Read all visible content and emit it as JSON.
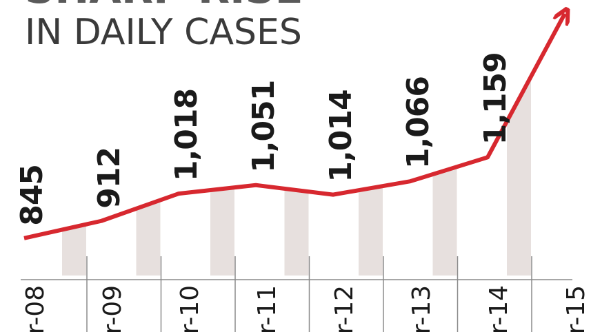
{
  "chart_data": {
    "type": "line",
    "title": "SHARP RISE",
    "subtitle": "IN DAILY CASES",
    "categories": [
      "r-08",
      "r-09",
      "r-10",
      "r-11",
      "r-12",
      "r-13",
      "r-14",
      "r-15"
    ],
    "values": [
      845,
      912,
      1018,
      1051,
      1014,
      1066,
      1159,
      1717
    ],
    "value_labels": [
      "845",
      "912",
      "1,018",
      "1,051",
      "1,014",
      "1,066",
      "1,159",
      null
    ],
    "color": "#d7282f",
    "ylim": [
      700,
      1770
    ]
  }
}
